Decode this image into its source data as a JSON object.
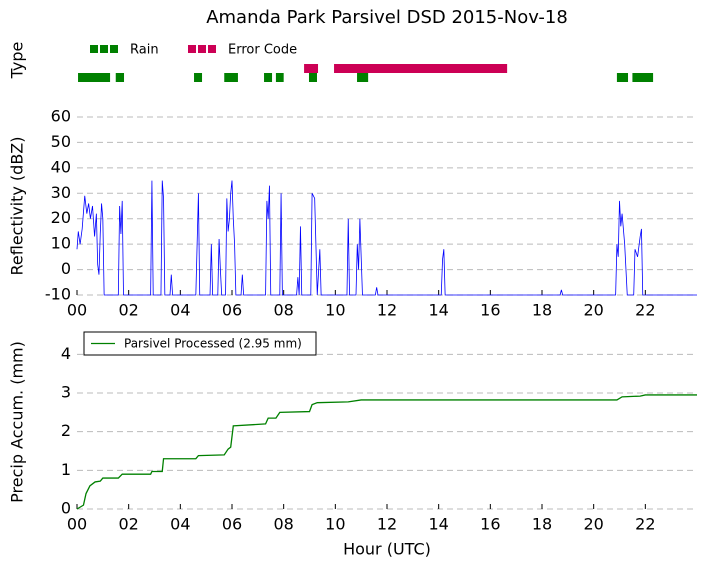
{
  "chart_data": [
    {
      "type": "timeline",
      "title": "Amanda Park Parsivel DSD 2015-Nov-18",
      "ylabel": "Type",
      "xlim": [
        0,
        24
      ],
      "series": [
        {
          "name": "Rain",
          "color": "#008000",
          "intervals": [
            [
              0.04,
              1.28
            ],
            [
              1.5,
              1.82
            ],
            [
              4.53,
              4.84
            ],
            [
              5.7,
              6.23
            ],
            [
              7.24,
              7.55
            ],
            [
              7.7,
              8.0
            ],
            [
              8.98,
              9.29
            ],
            [
              10.84,
              11.27
            ],
            [
              20.9,
              21.33
            ],
            [
              21.5,
              22.3
            ]
          ]
        },
        {
          "name": "Error Code",
          "color": "#cc0055",
          "intervals": [
            [
              8.79,
              9.33
            ],
            [
              9.95,
              16.65
            ]
          ]
        }
      ]
    },
    {
      "type": "line",
      "ylabel": "Reflectivity (dBZ)",
      "color": "#0000ff",
      "xlim": [
        0,
        24
      ],
      "ylim": [
        -10,
        60
      ],
      "yticks": [
        -10,
        0,
        10,
        20,
        30,
        40,
        50,
        60
      ],
      "grid": true,
      "xticks": [
        {
          "value": 0,
          "label": "00"
        },
        {
          "value": 2,
          "label": "02"
        },
        {
          "value": 4,
          "label": "04"
        },
        {
          "value": 6,
          "label": "06"
        },
        {
          "value": 8,
          "label": "08"
        },
        {
          "value": 10,
          "label": "10"
        },
        {
          "value": 12,
          "label": "12"
        },
        {
          "value": 14,
          "label": "14"
        },
        {
          "value": 16,
          "label": "16"
        },
        {
          "value": 18,
          "label": "18"
        },
        {
          "value": 20,
          "label": "20"
        },
        {
          "value": 22,
          "label": "22"
        }
      ],
      "x": [
        0.0,
        0.05,
        0.12,
        0.2,
        0.3,
        0.38,
        0.45,
        0.52,
        0.6,
        0.68,
        0.75,
        0.8,
        0.85,
        0.9,
        0.95,
        1.0,
        1.05,
        1.6,
        1.65,
        1.7,
        1.75,
        1.8,
        2.85,
        2.9,
        2.95,
        3.25,
        3.3,
        3.35,
        3.4,
        3.6,
        3.65,
        3.7,
        4.6,
        4.7,
        4.75,
        5.15,
        5.2,
        5.25,
        5.45,
        5.5,
        5.55,
        5.6,
        5.75,
        5.8,
        5.85,
        5.9,
        5.95,
        6.0,
        6.05,
        6.1,
        6.15,
        6.35,
        6.4,
        6.45,
        7.3,
        7.35,
        7.4,
        7.45,
        7.5,
        7.85,
        7.9,
        7.95,
        8.5,
        8.55,
        8.6,
        8.65,
        8.7,
        9.05,
        9.1,
        9.2,
        9.3,
        9.4,
        9.45,
        10.45,
        10.5,
        10.55,
        10.8,
        10.85,
        10.9,
        10.95,
        11.0,
        11.05,
        11.55,
        11.6,
        11.65,
        14.1,
        14.15,
        14.2,
        14.25,
        18.7,
        18.75,
        18.8,
        20.85,
        20.9,
        20.95,
        21.0,
        21.05,
        21.1,
        21.2,
        21.3,
        21.55,
        21.6,
        21.7,
        21.8,
        21.85,
        21.9,
        24
      ],
      "values": [
        8,
        15,
        10,
        16,
        29,
        22,
        26,
        20,
        25,
        13,
        22,
        2,
        -2,
        14,
        26,
        20,
        -10,
        -10,
        25,
        14,
        27,
        -10,
        -10,
        35,
        -10,
        -10,
        35,
        28,
        -10,
        -10,
        -2,
        -10,
        -10,
        30,
        -10,
        -10,
        10,
        -10,
        -10,
        12,
        0,
        -10,
        -10,
        28,
        15,
        20,
        30,
        35,
        20,
        10,
        -10,
        -10,
        -2,
        -10,
        -10,
        27,
        20,
        33,
        -10,
        -10,
        30,
        -10,
        -10,
        -3,
        -10,
        17,
        -10,
        -10,
        30,
        28,
        -10,
        8,
        -10,
        -10,
        20,
        -10,
        -10,
        10,
        0,
        20,
        5,
        -10,
        -10,
        -7,
        -10,
        -10,
        4,
        8,
        -10,
        -10,
        -8,
        -10,
        -10,
        10,
        5,
        27,
        17,
        22,
        10,
        -10,
        -10,
        8,
        5,
        13,
        16,
        -10,
        -10
      ]
    },
    {
      "type": "line",
      "ylabel": "Precip Accum. (mm)",
      "xlabel": "Hour (UTC)",
      "xlim": [
        0,
        24
      ],
      "ylim": [
        0,
        4.5
      ],
      "yticks": [
        0,
        1,
        2,
        3,
        4
      ],
      "grid": true,
      "legend": "upper left",
      "xticks": [
        {
          "value": 0,
          "label": "00"
        },
        {
          "value": 2,
          "label": "02"
        },
        {
          "value": 4,
          "label": "04"
        },
        {
          "value": 6,
          "label": "06"
        },
        {
          "value": 8,
          "label": "08"
        },
        {
          "value": 10,
          "label": "10"
        },
        {
          "value": 12,
          "label": "12"
        },
        {
          "value": 14,
          "label": "14"
        },
        {
          "value": 16,
          "label": "16"
        },
        {
          "value": 18,
          "label": "18"
        },
        {
          "value": 20,
          "label": "20"
        },
        {
          "value": 22,
          "label": "22"
        }
      ],
      "x": [
        0,
        0.25,
        0.35,
        0.5,
        0.7,
        0.9,
        1.0,
        1.6,
        1.75,
        2.85,
        2.9,
        3.3,
        3.35,
        4.6,
        4.7,
        5.7,
        5.85,
        5.95,
        6.05,
        7.3,
        7.4,
        7.7,
        7.85,
        9.0,
        9.1,
        9.3,
        10.5,
        11.0,
        20.9,
        21.1,
        21.8,
        22.0,
        24
      ],
      "series": [
        {
          "name": "Parsivel Processed (2.95 mm)",
          "color": "#008000",
          "values": [
            0,
            0.1,
            0.4,
            0.6,
            0.7,
            0.72,
            0.8,
            0.8,
            0.9,
            0.9,
            0.97,
            0.97,
            1.3,
            1.3,
            1.38,
            1.4,
            1.55,
            1.6,
            2.15,
            2.2,
            2.35,
            2.35,
            2.5,
            2.52,
            2.7,
            2.75,
            2.77,
            2.82,
            2.82,
            2.9,
            2.92,
            2.95,
            2.95
          ]
        }
      ]
    }
  ]
}
